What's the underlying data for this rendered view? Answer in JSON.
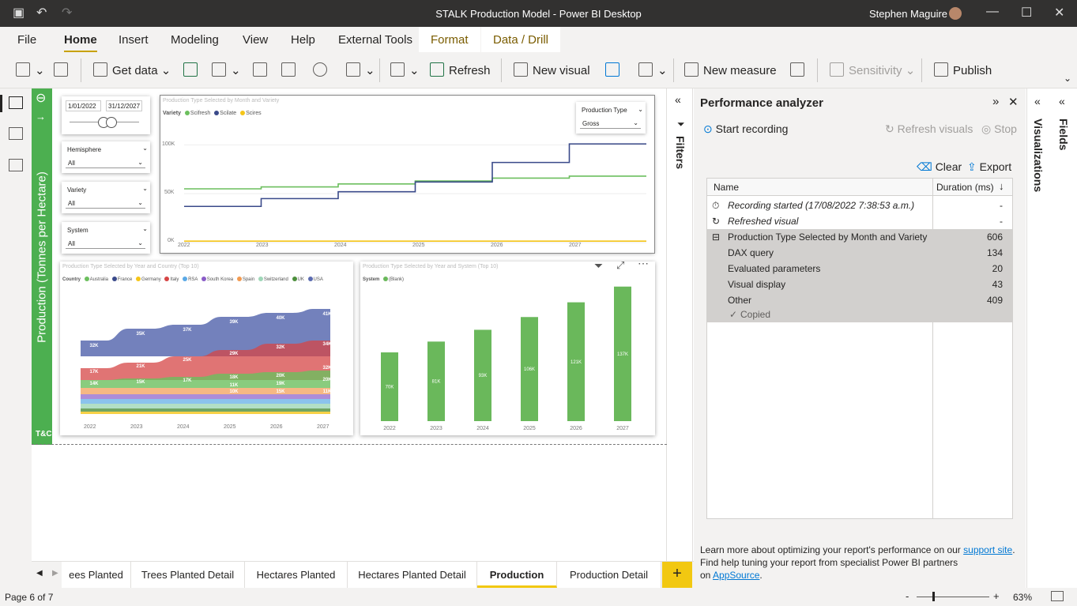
{
  "app": {
    "title": "STALK Production Model - Power BI Desktop",
    "user": "Stephen Maguire"
  },
  "menu": [
    "File",
    "Home",
    "Insert",
    "Modeling",
    "View",
    "Help",
    "External Tools"
  ],
  "menu_context": [
    "Format",
    "Data / Drill"
  ],
  "ribbon": {
    "get_data": "Get data",
    "refresh": "Refresh",
    "new_visual": "New visual",
    "new_measure": "New measure",
    "sensitivity": "Sensitivity",
    "publish": "Publish"
  },
  "report": {
    "vertical_title": "Production (Tonnes per Hectare)",
    "logo": "T&C",
    "date_slicer": {
      "start": "1/01/2022",
      "end": "31/12/2027"
    },
    "slicers": [
      {
        "label": "Hemisphere",
        "value": "All"
      },
      {
        "label": "Variety",
        "value": "All"
      },
      {
        "label": "System",
        "value": "All"
      }
    ],
    "production_type": {
      "label": "Production Type",
      "value": "Gross"
    },
    "line_chart": {
      "title": "Production Type Selected by Month and Variety",
      "legend_title": "Variety",
      "legend": [
        "Scifresh",
        "Scilate",
        "Scires"
      ],
      "y_ticks": [
        "100K",
        "50K",
        "0K"
      ],
      "x_ticks": [
        "2022",
        "2023",
        "2024",
        "2025",
        "2026",
        "2027"
      ]
    },
    "ribbon_chart": {
      "title": "Production Type Selected by Year and Country (Top 10)",
      "legend_title": "Country",
      "legend": [
        "Australia",
        "France",
        "Germany",
        "Italy",
        "RSA",
        "South Korea",
        "Spain",
        "Switzerland",
        "UK",
        "USA"
      ],
      "x_ticks": [
        "2022",
        "2023",
        "2024",
        "2025",
        "2026",
        "2027"
      ],
      "labels": [
        [
          "32K",
          "17K",
          "14K"
        ],
        [
          "35K",
          "21K",
          "15K"
        ],
        [
          "37K",
          "25K",
          "17K"
        ],
        [
          "39K",
          "29K",
          "18K",
          "11K",
          "10K"
        ],
        [
          "40K",
          "32K",
          "20K",
          "19K",
          "15K"
        ],
        [
          "41K",
          "34K",
          "32K",
          "20K",
          "11K"
        ]
      ]
    },
    "bar_chart": {
      "title": "Production Type Selected by Year and System (Top 10)",
      "legend_title": "System",
      "legend": [
        "(Blank)"
      ]
    }
  },
  "chart_data": [
    {
      "type": "line",
      "x": [
        "2022",
        "2023",
        "2024",
        "2025",
        "2026",
        "2027"
      ],
      "series": [
        {
          "name": "Scifresh",
          "values": [
            55000,
            57000,
            60000,
            63000,
            66000,
            68000
          ]
        },
        {
          "name": "Scilate",
          "values": [
            37000,
            45000,
            52000,
            62000,
            82000,
            101000
          ]
        },
        {
          "name": "Scires",
          "values": [
            1500,
            1500,
            1500,
            1500,
            1500,
            1500
          ]
        }
      ],
      "ylim": [
        0,
        110000
      ]
    },
    {
      "type": "bar",
      "categories": [
        "2022",
        "2023",
        "2024",
        "2025",
        "2026",
        "2027"
      ],
      "values": [
        70000,
        81000,
        93000,
        106000,
        121000,
        137000
      ],
      "labels": [
        "70K",
        "81K",
        "93K",
        "106K",
        "121K",
        "137K"
      ],
      "ylim": [
        0,
        140000
      ]
    }
  ],
  "colors": {
    "scifresh": "#6cbf5e",
    "scilate": "#3a4a8a",
    "scires": "#f5c518",
    "bar": "#6ab85b",
    "accent": "#f2c811"
  },
  "filters_label": "Filters",
  "perf": {
    "title": "Performance analyzer",
    "start": "Start recording",
    "refresh": "Refresh visuals",
    "stop": "Stop",
    "clear": "Clear",
    "export": "Export",
    "col_name": "Name",
    "col_duration": "Duration (ms)",
    "rows": [
      {
        "name": "Recording started (17/08/2022 7:38:53 a.m.)",
        "duration": "-"
      },
      {
        "name": "Refreshed visual",
        "duration": "-"
      },
      {
        "name": "Production Type Selected by Month and Variety",
        "duration": "606"
      },
      {
        "name": "DAX query",
        "duration": "134"
      },
      {
        "name": "Evaluated parameters",
        "duration": "20"
      },
      {
        "name": "Visual display",
        "duration": "43"
      },
      {
        "name": "Other",
        "duration": "409"
      }
    ],
    "copied": "Copied",
    "foot1": "Learn more about optimizing your report's performance on our",
    "foot_link1": "support site",
    "foot2": "Find help tuning your report from specialist Power BI partners",
    "foot_on": "on",
    "foot_link2": "AppSource"
  },
  "right_panes": [
    "Visualizations",
    "Fields"
  ],
  "tabs": [
    "ees Planted",
    "Trees Planted Detail",
    "Hectares Planted",
    "Hectares Planted Detail",
    "Production",
    "Production Detail"
  ],
  "status": {
    "page": "Page 6 of 7",
    "zoom": "63%"
  }
}
